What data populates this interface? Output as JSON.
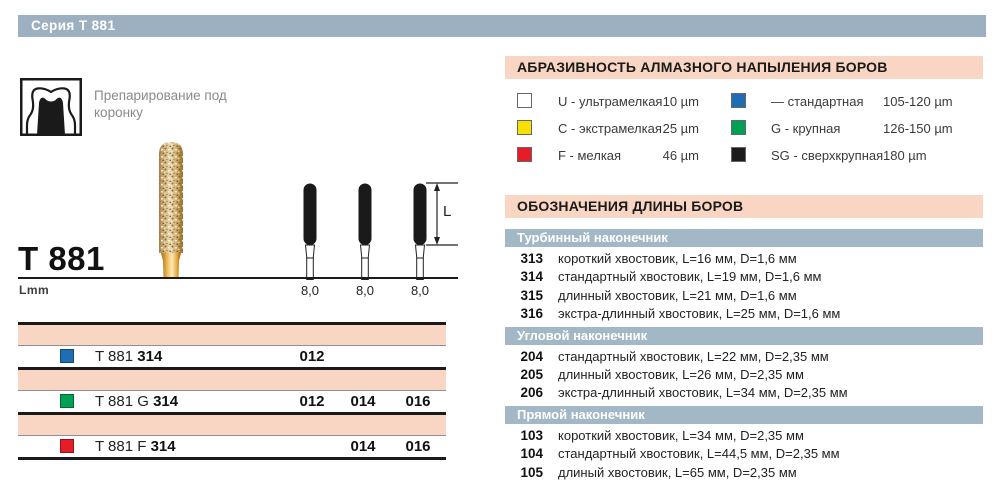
{
  "series": {
    "title": "Серия Т 881"
  },
  "colors": {
    "header_bar": "#9cb0c2",
    "section_band": "#a3b8c7",
    "salmon_band": "#f9d6c3",
    "grit_standard_blue": "#1f6db3",
    "grit_coarse_green": "#00a152",
    "grit_fine_red": "#e71c29",
    "grit_extrafine_yellow": "#f8e100",
    "grit_supercoarse_black": "#1c1c1c",
    "grit_ultrafine_white": "#ffffff"
  },
  "left": {
    "application_label": "Препарирование под коронку",
    "product_title": "T 881",
    "unit_label": "Lmm",
    "length_dim_label": "L",
    "shank_length_labels": [
      "8,0",
      "8,0",
      "8,0"
    ],
    "product_rows": [
      {
        "swatch_color": "#1f6db3",
        "name_prefix": "T 881",
        "code": "314",
        "sizes": [
          "012",
          "",
          ""
        ]
      },
      {
        "swatch_color": "#00a152",
        "name_prefix": "T 881 G",
        "code": "314",
        "sizes": [
          "012",
          "014",
          "016"
        ]
      },
      {
        "swatch_color": "#e71c29",
        "name_prefix": "T 881 F",
        "code": "314",
        "sizes": [
          "",
          "014",
          "016"
        ]
      }
    ]
  },
  "abrasiveness": {
    "title": "АБРАЗИВНОСТЬ АЛМАЗНОГО НАПЫЛЕНИЯ БОРОВ",
    "legend_col1": [
      {
        "color": "#ffffff",
        "label": "U - ультрамелкая",
        "value": "10 µm"
      },
      {
        "color": "#f8e100",
        "label": "C - экстрамелкая",
        "value": "25 µm"
      },
      {
        "color": "#e71c29",
        "label": "F - мелкая",
        "value": "46 µm"
      }
    ],
    "legend_col2": [
      {
        "color": "#1f6db3",
        "label": "— стандартная",
        "value": "105-120 µm"
      },
      {
        "color": "#00a152",
        "label": "G - крупная",
        "value": "126-150 µm"
      },
      {
        "color": "#1c1c1c",
        "label": "SG - сверхкрупная",
        "value": "180 µm"
      }
    ]
  },
  "length_designations": {
    "title": "ОБОЗНАЧЕНИЯ ДЛИНЫ БОРОВ",
    "sections": [
      {
        "name": "Турбинный наконечник",
        "items": [
          {
            "code": "313",
            "desc": "короткий хвостовик, L=16 мм, D=1,6 мм"
          },
          {
            "code": "314",
            "desc": "стандартный хвостовик, L=19 мм, D=1,6 мм"
          },
          {
            "code": "315",
            "desc": "длинный хвостовик, L=21 мм, D=1,6 мм"
          },
          {
            "code": "316",
            "desc": "экстра-длинный хвостовик, L=25 мм, D=1,6 мм"
          }
        ]
      },
      {
        "name": "Угловой наконечник",
        "items": [
          {
            "code": "204",
            "desc": "стандартный хвостовик, L=22 мм, D=2,35 мм"
          },
          {
            "code": "205",
            "desc": "длинный хвостовик, L=26 мм, D=2,35 мм"
          },
          {
            "code": "206",
            "desc": "экстра-длинный хвостовик, L=34 мм, D=2,35 мм"
          }
        ]
      },
      {
        "name": "Прямой наконечник",
        "items": [
          {
            "code": "103",
            "desc": "короткий хвостовик, L=34 мм, D=2,35 мм"
          },
          {
            "code": "104",
            "desc": "стандартный хвостовик, L=44,5 мм, D=2,35 мм"
          },
          {
            "code": "105",
            "desc": "длиный хвостовик, L=65 мм, D=2,35 мм"
          }
        ]
      }
    ]
  }
}
